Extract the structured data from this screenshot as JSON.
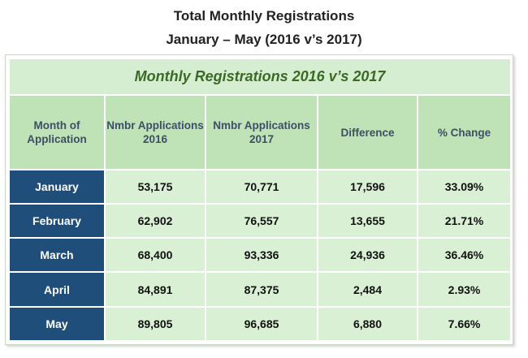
{
  "chart_data": {
    "type": "table",
    "title": "Total Monthly Registrations",
    "subtitle": "January – May (2016 v’s 2017)",
    "table_caption": "Monthly Registrations 2016 v’s 2017",
    "columns": [
      "Month of Application",
      "Nmbr Applications 2016",
      "Nmbr Applications 2017",
      "Difference",
      "% Change"
    ],
    "rows": [
      {
        "month": "January",
        "apps_2016": "53,175",
        "apps_2017": "70,771",
        "difference": "17,596",
        "pct_change": "33.09%"
      },
      {
        "month": "February",
        "apps_2016": "62,902",
        "apps_2017": "76,557",
        "difference": "13,655",
        "pct_change": "21.71%"
      },
      {
        "month": "March",
        "apps_2016": "68,400",
        "apps_2017": "93,336",
        "difference": "24,936",
        "pct_change": "36.46%"
      },
      {
        "month": "April",
        "apps_2016": "84,891",
        "apps_2017": "87,375",
        "difference": "2,484",
        "pct_change": "2.93%"
      },
      {
        "month": "May",
        "apps_2016": "89,805",
        "apps_2017": "96,685",
        "difference": "6,880",
        "pct_change": "7.66%"
      }
    ]
  },
  "colors": {
    "caption_bg": "#d5eed1",
    "caption_text": "#3c6a25",
    "header_bg": "#bfe3b6",
    "header_text": "#3d4e66",
    "cell_bg": "#d9f0d4",
    "month_bg": "#1f4e7a",
    "month_text": "#ffffff"
  }
}
